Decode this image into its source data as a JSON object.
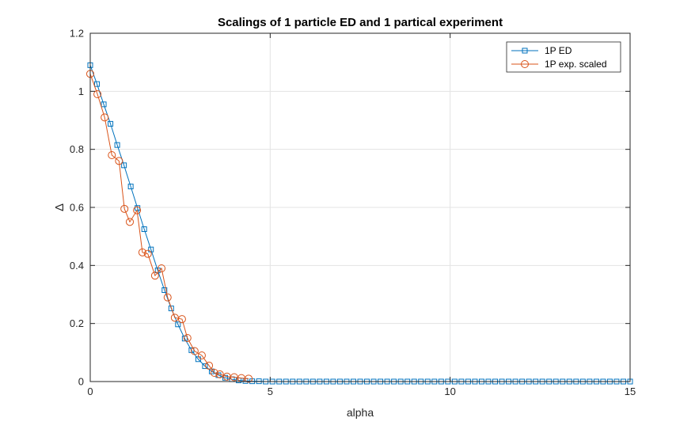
{
  "chart_data": {
    "type": "line",
    "title": "Scalings of 1 particle ED and 1 partical experiment",
    "xlabel": "alpha",
    "ylabel": "Δ",
    "xlim": [
      0,
      15
    ],
    "ylim": [
      0,
      1.2
    ],
    "xticks": [
      0,
      5,
      10,
      15
    ],
    "xtick_labels": [
      "0",
      "5",
      "10",
      "15"
    ],
    "yticks": [
      0,
      0.2,
      0.4,
      0.6,
      0.8,
      1,
      1.2
    ],
    "ytick_labels": [
      "0",
      "0.2",
      "0.4",
      "0.6",
      "0.8",
      "1",
      "1.2"
    ],
    "grid": true,
    "legend_position": "top-right",
    "series": [
      {
        "name": "1P ED",
        "color": "#0072BD",
        "marker": "square",
        "x": [
          0,
          0.1875,
          0.375,
          0.5625,
          0.75,
          0.9375,
          1.125,
          1.3125,
          1.5,
          1.6875,
          1.875,
          2.0625,
          2.25,
          2.4375,
          2.625,
          2.8125,
          3.0,
          3.1875,
          3.375,
          3.5625,
          3.75,
          3.9375,
          4.125,
          4.3125,
          4.5,
          4.6875,
          4.875,
          5.0625,
          5.25,
          5.4375,
          5.625,
          5.8125,
          6.0,
          6.1875,
          6.375,
          6.5625,
          6.75,
          6.9375,
          7.125,
          7.3125,
          7.5,
          7.6875,
          7.875,
          8.0625,
          8.25,
          8.4375,
          8.625,
          8.8125,
          9.0,
          9.1875,
          9.375,
          9.5625,
          9.75,
          9.9375,
          10.125,
          10.3125,
          10.5,
          10.6875,
          10.875,
          11.0625,
          11.25,
          11.4375,
          11.625,
          11.8125,
          12.0,
          12.1875,
          12.375,
          12.5625,
          12.75,
          12.9375,
          13.125,
          13.3125,
          13.5,
          13.6875,
          13.875,
          14.0625,
          14.25,
          14.4375,
          14.625,
          14.8125,
          15.0
        ],
        "y": [
          1.09,
          1.025,
          0.955,
          0.888,
          0.815,
          0.745,
          0.672,
          0.598,
          0.525,
          0.455,
          0.383,
          0.315,
          0.252,
          0.197,
          0.148,
          0.108,
          0.077,
          0.053,
          0.035,
          0.022,
          0.013,
          0.008,
          0.004,
          0.002,
          0.001,
          0.001,
          0,
          0,
          0,
          0,
          0,
          0,
          0,
          0,
          0,
          0,
          0,
          0,
          0,
          0,
          0,
          0,
          0,
          0,
          0,
          0,
          0,
          0,
          0,
          0,
          0,
          0,
          0,
          0,
          0,
          0,
          0,
          0,
          0,
          0,
          0,
          0,
          0,
          0,
          0,
          0,
          0,
          0,
          0,
          0,
          0,
          0,
          0,
          0,
          0,
          0,
          0,
          0,
          0,
          0,
          0
        ]
      },
      {
        "name": "1P exp. scaled",
        "color": "#D95319",
        "marker": "circle",
        "x": [
          0,
          0.2,
          0.4,
          0.6,
          0.8,
          0.95,
          1.1,
          1.3,
          1.45,
          1.6,
          1.8,
          1.98,
          2.15,
          2.35,
          2.55,
          2.7,
          2.9,
          3.1,
          3.3,
          3.45,
          3.6,
          3.8,
          4.0,
          4.2,
          4.4
        ],
        "y": [
          1.06,
          0.99,
          0.91,
          0.78,
          0.76,
          0.595,
          0.55,
          0.59,
          0.445,
          0.44,
          0.365,
          0.39,
          0.29,
          0.22,
          0.215,
          0.15,
          0.105,
          0.09,
          0.055,
          0.03,
          0.025,
          0.017,
          0.015,
          0.012,
          0.01
        ]
      }
    ]
  }
}
